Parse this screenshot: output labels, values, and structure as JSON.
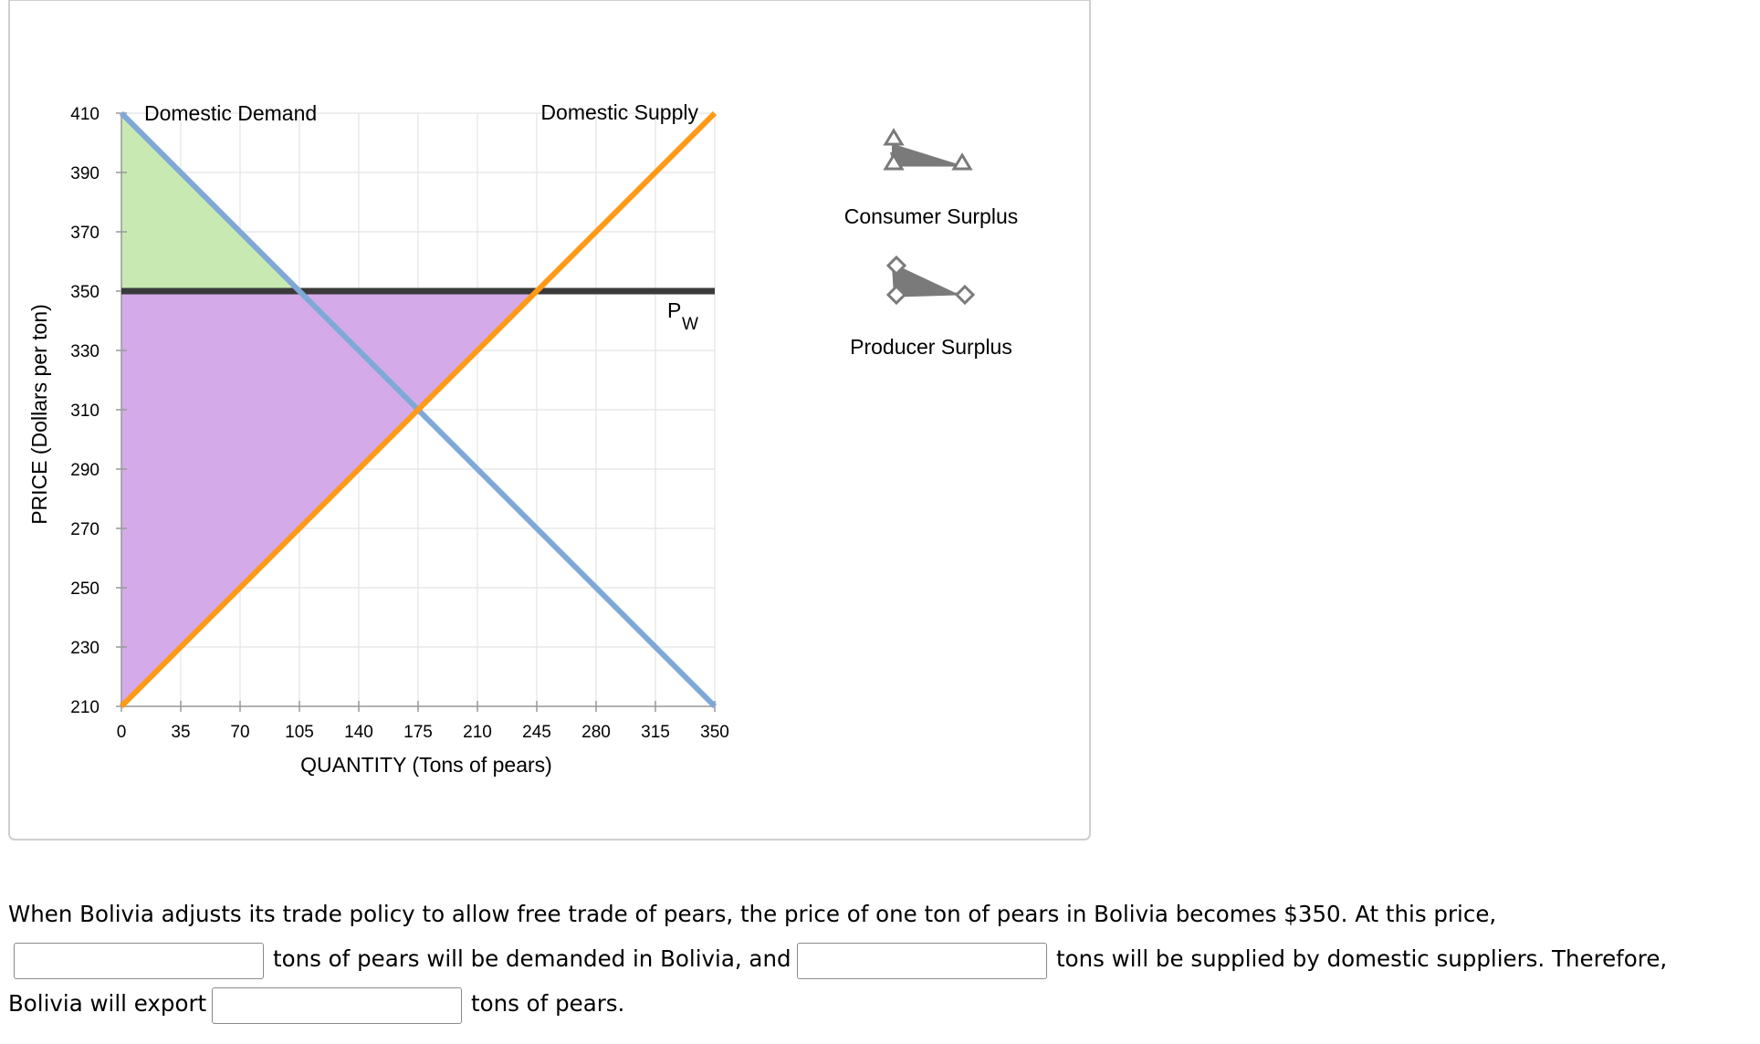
{
  "legend": {
    "consumer_surplus_label": "Consumer Surplus",
    "producer_surplus_label": "Producer Surplus",
    "consumer_icon": "triangle-marker-tool-icon",
    "producer_icon": "diamond-marker-tool-icon"
  },
  "question": {
    "line1": "When Bolivia adjusts its trade policy to allow free trade of pears, the price of one ton of pears in Bolivia becomes $350. At this price,",
    "line2_mid": "tons of pears will be demanded in Bolivia, and",
    "line2_end": "tons will be supplied by domestic suppliers. Therefore,",
    "line3_start": "Bolivia will export",
    "line3_end": "tons of pears.",
    "input_demanded_value": "",
    "input_supplied_value": "",
    "input_export_value": ""
  },
  "chart_data": {
    "type": "line",
    "xlabel": "QUANTITY (Tons of pears)",
    "ylabel": "PRICE (Dollars per ton)",
    "xlim": [
      0,
      350
    ],
    "ylim": [
      210,
      410
    ],
    "x_ticks": [
      "0",
      "35",
      "70",
      "105",
      "140",
      "175",
      "210",
      "245",
      "280",
      "315",
      "350"
    ],
    "y_ticks": [
      "410",
      "390",
      "370",
      "350",
      "330",
      "310",
      "290",
      "270",
      "250",
      "230",
      "210"
    ],
    "grid": true,
    "series": [
      {
        "name": "Domestic Demand",
        "x": [
          0,
          350
        ],
        "y": [
          410,
          210
        ],
        "color": "#7fa8d6"
      },
      {
        "name": "Domestic Supply",
        "x": [
          0,
          350
        ],
        "y": [
          210,
          410
        ],
        "color": "#ff9a17"
      }
    ],
    "world_price": {
      "label_main": "P",
      "label_sub": "W",
      "value": 350,
      "color": "#3a3a3a"
    },
    "areas": [
      {
        "name": "consumer-surplus-area",
        "points": [
          [
            0,
            410
          ],
          [
            105,
            350
          ],
          [
            0,
            350
          ]
        ],
        "color": "#c8eab2"
      },
      {
        "name": "producer-surplus-area",
        "points": [
          [
            0,
            350
          ],
          [
            245,
            350
          ],
          [
            0,
            210
          ]
        ],
        "color": "#d4abe8"
      }
    ]
  }
}
